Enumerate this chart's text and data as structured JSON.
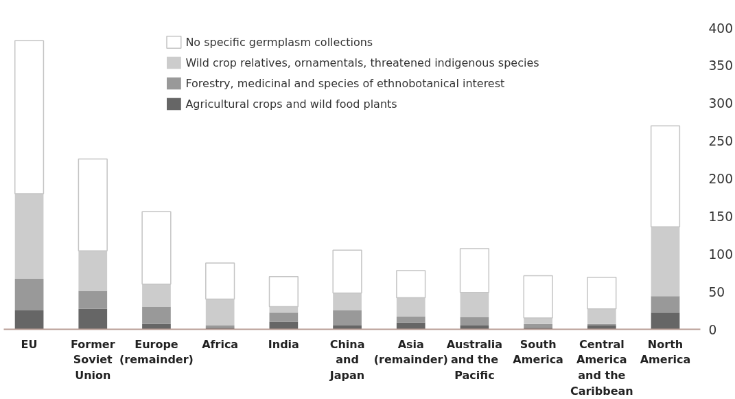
{
  "chart_data": {
    "type": "bar",
    "stacked": true,
    "categories": [
      "EU",
      "Former\nSoviet\nUnion",
      "Europe\n(remainder)",
      "Africa",
      "India",
      "China\nand\nJapan",
      "Asia\n(remainder)",
      "Australia\nand the\nPacific",
      "South\nAmerica",
      "Central\nAmerica\nand the\nCaribbean",
      "North\nAmerica"
    ],
    "series": [
      {
        "name": "Agricultural crops and wild food plants",
        "color": "#666666",
        "values": [
          25,
          27,
          7,
          2,
          10,
          5,
          9,
          5,
          2,
          5,
          22
        ]
      },
      {
        "name": "Forestry, medicinal and species of ethnobotanical interest",
        "color": "#999999",
        "values": [
          42,
          24,
          23,
          3,
          12,
          20,
          8,
          11,
          5,
          2,
          22
        ]
      },
      {
        "name": "Wild crop relatives, ornamentals, threatened indigenous species",
        "color": "#cccccc",
        "values": [
          113,
          53,
          30,
          35,
          8,
          23,
          25,
          33,
          8,
          20,
          92
        ]
      },
      {
        "name": "No specific germplasm collections",
        "color": "#ffffff",
        "values": [
          203,
          122,
          96,
          48,
          40,
          57,
          36,
          58,
          56,
          42,
          134
        ]
      }
    ],
    "ylim": [
      0,
      400
    ],
    "yticks": [
      0,
      50,
      100,
      150,
      200,
      250,
      300,
      350,
      400
    ],
    "grid": false,
    "legend": "top"
  }
}
